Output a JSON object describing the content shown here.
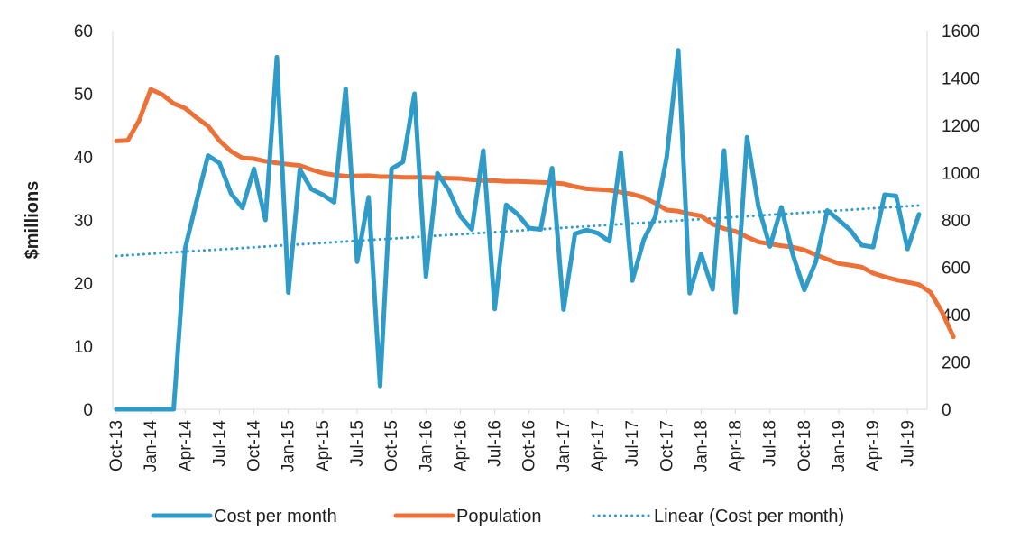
{
  "chart_data": {
    "type": "line",
    "title": "",
    "xlabel": "",
    "ylabel": "$millions",
    "ylabel_right": "",
    "ylim": [
      0,
      60
    ],
    "ylim_right": [
      0,
      1600
    ],
    "yticks": [
      "0",
      "10",
      "20",
      "30",
      "40",
      "50",
      "60"
    ],
    "yticks_right": [
      "0",
      "200",
      "400",
      "600",
      "800",
      "1000",
      "1200",
      "1400",
      "1600"
    ],
    "x_tick_labels": [
      "Oct-13",
      "Jan-14",
      "Apr-14",
      "Jul-14",
      "Oct-14",
      "Jan-15",
      "Apr-15",
      "Jul-15",
      "Oct-15",
      "Jan-16",
      "Apr-16",
      "Jul-16",
      "Oct-16",
      "Jan-17",
      "Apr-17",
      "Jul-17",
      "Oct-17",
      "Jan-18",
      "Apr-18",
      "Jul-18",
      "Oct-18",
      "Jan-19",
      "Apr-19",
      "Jul-19"
    ],
    "x_months_start": "Oct-13",
    "grid": false,
    "legend_position": "bottom",
    "series": [
      {
        "name": "Cost per month",
        "axis": "left",
        "color": "#2e9bc9",
        "style": "solid",
        "values": [
          0,
          0,
          0,
          0,
          0,
          0,
          25.5,
          33,
          40.2,
          39,
          34.2,
          31.9,
          38.1,
          30,
          55.8,
          18.5,
          38,
          34.9,
          34,
          32.8,
          50.8,
          23.4,
          33.6,
          3.7,
          38.1,
          39.2,
          50,
          21,
          37.4,
          34.7,
          30.6,
          28.5,
          41,
          15.9,
          32.4,
          30.9,
          28.7,
          28.5,
          38.2,
          15.8,
          27.8,
          28.4,
          27.9,
          26.6,
          40.6,
          20.4,
          26.9,
          30.5,
          40,
          56.9,
          18.4,
          24.6,
          19,
          41,
          15.4,
          43.1,
          32.1,
          25.8,
          32,
          24.5,
          18.9,
          23.4,
          31.5,
          30,
          28.4,
          26,
          25.7,
          34,
          33.8,
          25.4,
          30.9
        ]
      },
      {
        "name": "Population",
        "axis": "right",
        "color": "#ed7037",
        "style": "solid",
        "values": [
          1134,
          1136,
          1222,
          1352,
          1330,
          1292,
          1272,
          1232,
          1197,
          1135,
          1090,
          1062,
          1059,
          1048,
          1041,
          1035,
          1030,
          1013,
          998,
          990,
          985,
          986,
          987,
          983,
          983,
          980,
          980,
          980,
          978,
          976,
          975,
          970,
          966,
          966,
          963,
          963,
          961,
          959,
          957,
          953,
          941,
          932,
          929,
          926,
          917,
          909,
          895,
          871,
          842,
          837,
          826,
          817,
          782,
          763,
          752,
          728,
          707,
          699,
          691,
          685,
          673,
          653,
          634,
          616,
          609,
          601,
          575,
          560,
          547,
          537,
          527,
          494,
          412,
          306
        ]
      },
      {
        "name": "Linear (Cost per month)",
        "axis": "left",
        "color": "#2e9bc9",
        "style": "dotted",
        "trend_start": 24.3,
        "trend_end": 32.3
      }
    ]
  }
}
